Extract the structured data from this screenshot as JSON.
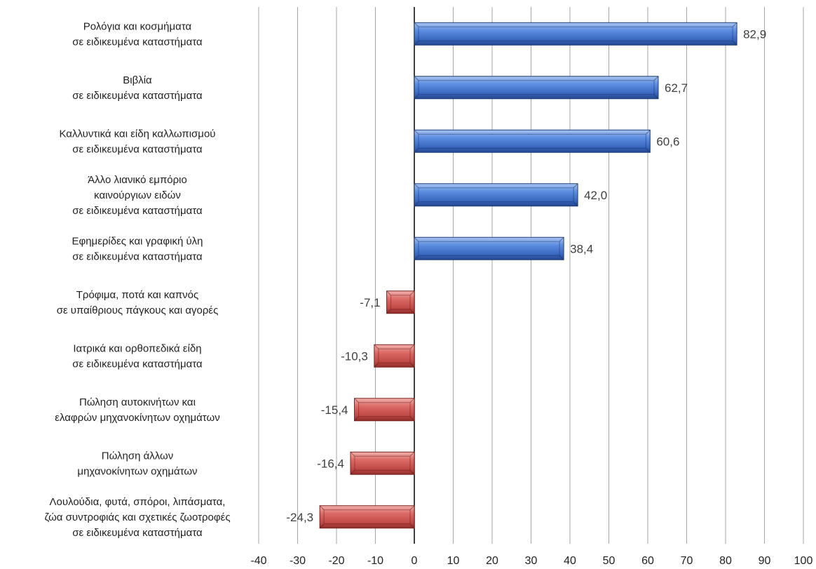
{
  "chart_data": {
    "type": "bar",
    "orientation": "horizontal",
    "title": "",
    "xlabel": "",
    "ylabel": "",
    "xlim": [
      -40,
      100
    ],
    "x_ticks": [
      -40,
      -30,
      -20,
      -10,
      0,
      10,
      20,
      30,
      40,
      50,
      60,
      70,
      80,
      90,
      100
    ],
    "x_tick_labels": [
      "-40",
      "-30",
      "-20",
      "-10",
      "0",
      "10",
      "20",
      "30",
      "40",
      "50",
      "60",
      "70",
      "80",
      "90",
      "100"
    ],
    "grid": "vertical",
    "legend": "none",
    "colors": {
      "positive": "#4472C4",
      "negative": "#C0504D"
    },
    "categories": [
      [
        "Ρολόγια και κοσμήματα",
        "σε ειδικευμένα καταστήματα"
      ],
      [
        "Βιβλία",
        "σε ειδικευμένα καταστήματα"
      ],
      [
        "Καλλυντικά και είδη καλλωπισμού",
        "σε ειδικευμένα καταστήματα"
      ],
      [
        "Άλλο λιανικό εμπόριο",
        "καινούργιων ειδών",
        "σε ειδικευμένα καταστήματα"
      ],
      [
        "Εφημερίδες και γραφική ύλη",
        "σε ειδικευμένα καταστήματα"
      ],
      [
        "Τρόφιμα, ποτά και καπνός",
        "σε υπαίθριους πάγκους και αγορές"
      ],
      [
        "Ιατρικά και ορθοπεδικά είδη",
        "σε ειδικευμένα καταστήματα"
      ],
      [
        "Πώληση αυτοκινήτων και",
        "ελαφρών μηχανοκίνητων οχημάτων"
      ],
      [
        "Πώληση άλλων",
        "μηχανοκίνητων οχημάτων"
      ],
      [
        "Λουλούδια, φυτά, σπόροι, λιπάσματα,",
        "ζώα συντροφιάς και σχετικές ζωοτροφές",
        "σε ειδικευμένα καταστήματα"
      ]
    ],
    "values": [
      82.9,
      62.7,
      60.6,
      42.0,
      38.4,
      -7.1,
      -10.3,
      -15.4,
      -16.4,
      -24.3
    ],
    "value_labels": [
      "82,9",
      "62,7",
      "60,6",
      "42,0",
      "38,4",
      "-7,1",
      "-10,3",
      "-15,4",
      "-16,4",
      "-24,3"
    ]
  }
}
